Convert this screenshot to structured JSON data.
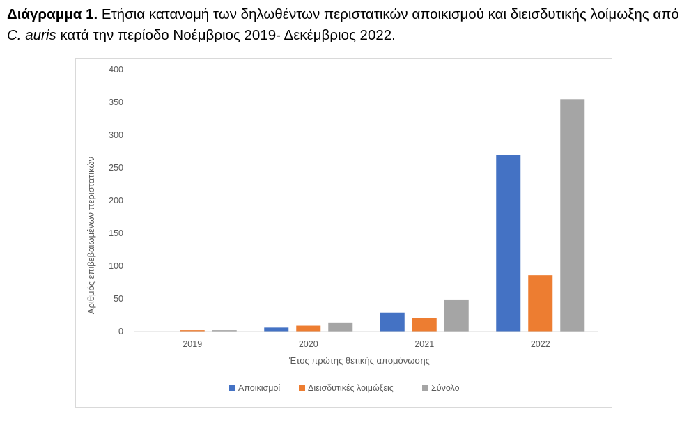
{
  "caption": {
    "label": "Διάγραμμα 1.",
    "text_part1": " Ετήσια κατανομή των δηλωθέντων περιστατικών αποικισμού και διεισδυτικής λοίμωξης από ",
    "organism": "C. auris",
    "text_part2": "  κατά την περίοδο Νοέμβριος 2019- Δεκέμβριος 2022."
  },
  "colors": {
    "series": [
      "#4472c4",
      "#ed7d31",
      "#a5a5a5"
    ],
    "axis_text": "#595959",
    "gridline": "#d9d9d9"
  },
  "chart_data": {
    "type": "bar",
    "title": "",
    "xlabel": "Έτος πρώτης θετικής απομόνωσης",
    "ylabel": "Αριθμός επιβεβαιωμένων περιστατικών",
    "categories": [
      "2019",
      "2020",
      "2021",
      "2022"
    ],
    "ylim": [
      0,
      400
    ],
    "yticks": [
      0,
      50,
      100,
      150,
      200,
      250,
      300,
      350,
      400
    ],
    "grid": false,
    "legend_position": "bottom",
    "series": [
      {
        "name": "Αποικισμοί",
        "values": [
          0,
          6,
          29,
          270
        ]
      },
      {
        "name": "Διεισδυτικές λοιμώξεις",
        "values": [
          2,
          9,
          21,
          86
        ]
      },
      {
        "name": "Σύνολο",
        "values": [
          2,
          14,
          49,
          355
        ]
      }
    ]
  }
}
